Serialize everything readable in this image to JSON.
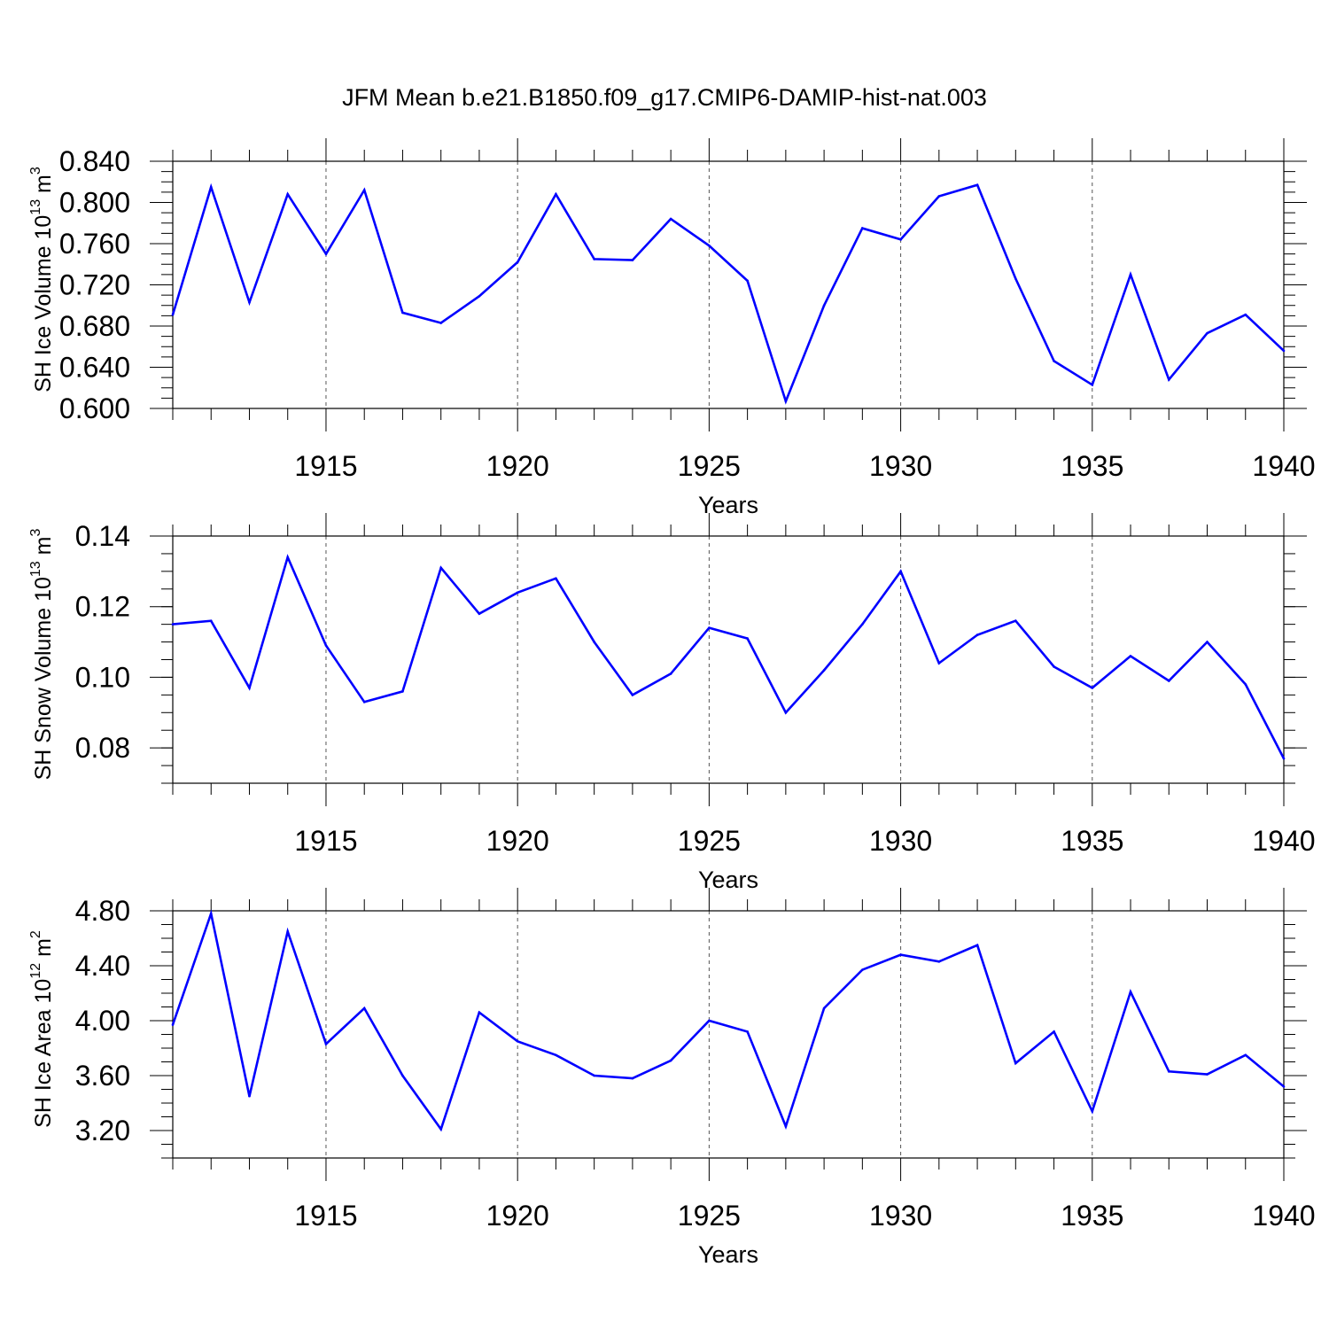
{
  "title": "JFM Mean b.e21.B1850.f09_g17.CMIP6-DAMIP-hist-nat.003",
  "colors": {
    "series": "#0000ff",
    "axis": "#000000",
    "grid": "#000000"
  },
  "chart_data": [
    {
      "type": "line",
      "ylabel_main": "SH Ice Volume 10",
      "ylabel_exp": "13",
      "ylabel_unit": " m",
      "ylabel_unit_exp": "3",
      "xlabel": "Years",
      "xlim": [
        1911,
        1940
      ],
      "ylim": [
        0.6,
        0.84
      ],
      "yticks": [
        "0.600",
        "0.640",
        "0.680",
        "0.720",
        "0.760",
        "0.800",
        "0.840"
      ],
      "xticks": [
        "1915",
        "1920",
        "1925",
        "1930",
        "1935",
        "1940"
      ],
      "x": [
        1911,
        1912,
        1913,
        1914,
        1915,
        1916,
        1917,
        1918,
        1919,
        1920,
        1921,
        1922,
        1923,
        1924,
        1925,
        1926,
        1927,
        1928,
        1929,
        1930,
        1931,
        1932,
        1933,
        1934,
        1935,
        1936,
        1937,
        1938,
        1939,
        1940
      ],
      "values": [
        0.691,
        0.815,
        0.703,
        0.808,
        0.75,
        0.812,
        0.693,
        0.683,
        0.709,
        0.742,
        0.808,
        0.745,
        0.744,
        0.784,
        0.758,
        0.724,
        0.607,
        0.7,
        0.775,
        0.764,
        0.806,
        0.817,
        0.726,
        0.646,
        0.623,
        0.73,
        0.628,
        0.673,
        0.691,
        0.656
      ]
    },
    {
      "type": "line",
      "ylabel_main": "SH Snow Volume 10",
      "ylabel_exp": "13",
      "ylabel_unit": " m",
      "ylabel_unit_exp": "3",
      "xlabel": "Years",
      "xlim": [
        1911,
        1940
      ],
      "ylim": [
        0.07,
        0.14
      ],
      "yticks": [
        "0.08",
        "0.10",
        "0.12",
        "0.14"
      ],
      "ytick_values": [
        0.08,
        0.1,
        0.12,
        0.14
      ],
      "xticks": [
        "1915",
        "1920",
        "1925",
        "1930",
        "1935",
        "1940"
      ],
      "x": [
        1911,
        1912,
        1913,
        1914,
        1915,
        1916,
        1917,
        1918,
        1919,
        1920,
        1921,
        1922,
        1923,
        1924,
        1925,
        1926,
        1927,
        1928,
        1929,
        1930,
        1931,
        1932,
        1933,
        1934,
        1935,
        1936,
        1937,
        1938,
        1939,
        1940
      ],
      "values": [
        0.115,
        0.116,
        0.097,
        0.134,
        0.109,
        0.093,
        0.096,
        0.131,
        0.118,
        0.124,
        0.128,
        0.11,
        0.095,
        0.101,
        0.114,
        0.111,
        0.09,
        0.102,
        0.115,
        0.13,
        0.104,
        0.112,
        0.116,
        0.103,
        0.097,
        0.106,
        0.099,
        0.11,
        0.098,
        0.077
      ]
    },
    {
      "type": "line",
      "ylabel_main": "SH Ice Area 10",
      "ylabel_exp": "12",
      "ylabel_unit": " m",
      "ylabel_unit_exp": "2",
      "xlabel": "Years",
      "xlim": [
        1911,
        1940
      ],
      "ylim": [
        3.0,
        4.8
      ],
      "yticks": [
        "3.20",
        "3.60",
        "4.00",
        "4.40",
        "4.80"
      ],
      "xticks": [
        "1915",
        "1920",
        "1925",
        "1930",
        "1935",
        "1940"
      ],
      "x": [
        1911,
        1912,
        1913,
        1914,
        1915,
        1916,
        1917,
        1918,
        1919,
        1920,
        1921,
        1922,
        1923,
        1924,
        1925,
        1926,
        1927,
        1928,
        1929,
        1930,
        1931,
        1932,
        1933,
        1934,
        1935,
        1936,
        1937,
        1938,
        1939,
        1940
      ],
      "values": [
        3.97,
        4.78,
        3.45,
        4.65,
        3.83,
        4.09,
        3.6,
        3.21,
        4.06,
        3.85,
        3.75,
        3.6,
        3.58,
        3.71,
        4.0,
        3.92,
        3.23,
        4.09,
        4.37,
        4.48,
        4.43,
        4.55,
        3.69,
        3.92,
        3.34,
        4.21,
        3.63,
        3.61,
        3.75,
        3.52
      ]
    }
  ]
}
